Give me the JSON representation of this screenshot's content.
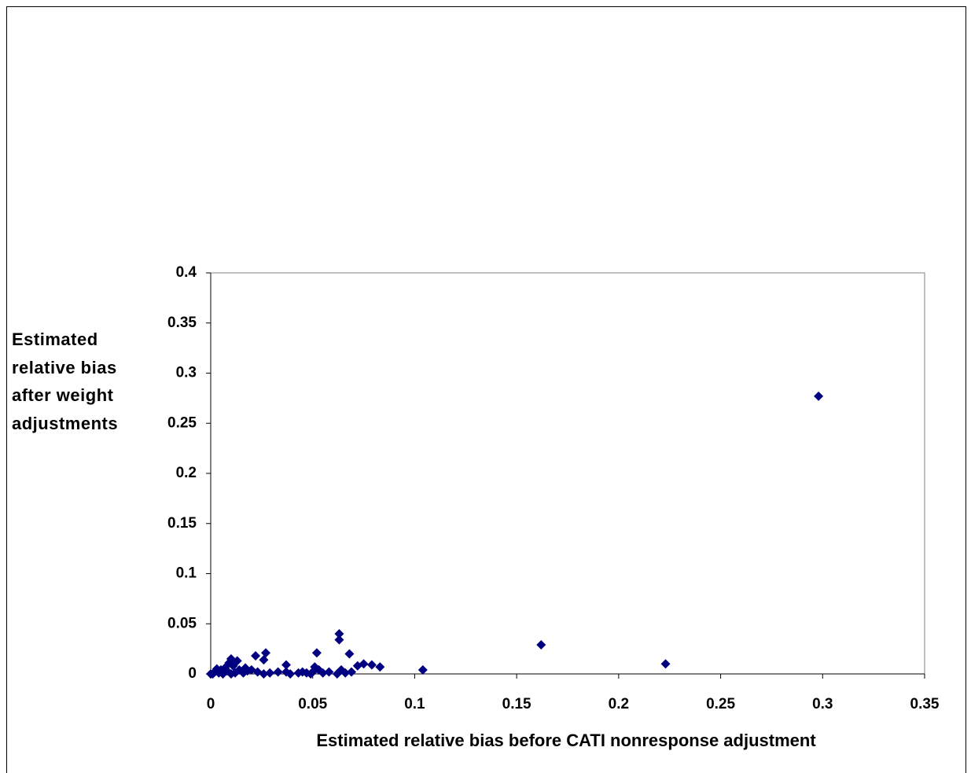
{
  "chart_data": {
    "type": "scatter",
    "x_label": "Estimated relative bias before CATI nonresponse adjustment",
    "y_label": "Estimated relative bias after weight adjustments",
    "xlim": [
      0,
      0.35
    ],
    "xticks": [
      0,
      0.05,
      0.1,
      0.15,
      0.2,
      0.25,
      0.3,
      0.35
    ],
    "ylim": [
      0,
      0.4
    ],
    "yticks": [
      0,
      0.05,
      0.1,
      0.15,
      0.2,
      0.25,
      0.3,
      0.35,
      0.4
    ],
    "grid": false,
    "series": [
      {
        "color": "#000080",
        "x": [
          0.298,
          0.223,
          0.162,
          0.104,
          0.083,
          0.079,
          0.075,
          0.072,
          0.069,
          0.068,
          0.066,
          0.064,
          0.063,
          0.063,
          0.062,
          0.058,
          0.055,
          0.053,
          0.052,
          0.051,
          0.05,
          0.049,
          0.047,
          0.045,
          0.043,
          0.039,
          0.037,
          0.037,
          0.033,
          0.029,
          0.027,
          0.026,
          0.026,
          0.023,
          0.022,
          0.02,
          0.018,
          0.017,
          0.016,
          0.014,
          0.013,
          0.012,
          0.011,
          0.01,
          0.01,
          0.009,
          0.008,
          0.007,
          0.006,
          0.005,
          0.004,
          0.003,
          0.002,
          0.001,
          0
        ],
        "values": [
          0.277,
          0.01,
          0.029,
          0.004,
          0.007,
          0.009,
          0.01,
          0.008,
          0.002,
          0.02,
          0.001,
          0.004,
          0.04,
          0.034,
          0,
          0.002,
          0.001,
          0.004,
          0.021,
          0.007,
          0.002,
          0,
          0.001,
          0.002,
          0.001,
          0,
          0.009,
          0.002,
          0.002,
          0.001,
          0.021,
          0.014,
          0,
          0.002,
          0.018,
          0.004,
          0.003,
          0.006,
          0.001,
          0.004,
          0.013,
          0.001,
          0.008,
          0.015,
          0,
          0.011,
          0.003,
          0.006,
          0,
          0.004,
          0.001,
          0.005,
          0.002,
          0,
          0
        ]
      }
    ]
  }
}
